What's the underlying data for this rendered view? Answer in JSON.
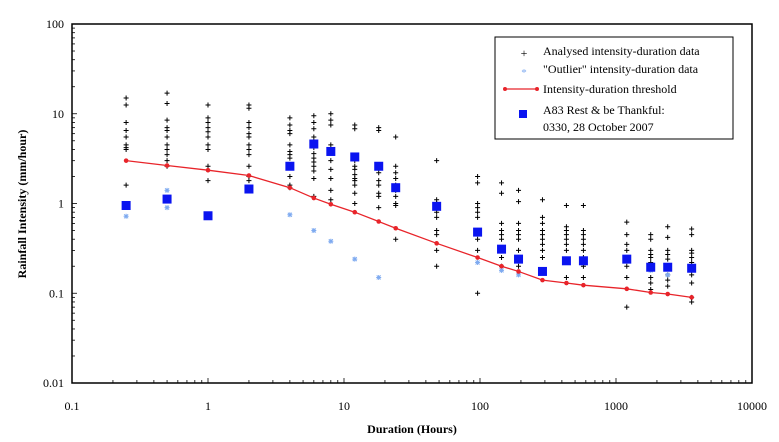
{
  "chart_data": {
    "type": "scatter",
    "title": "",
    "xlabel": "Duration (Hours)",
    "ylabel": "Rainfall Intensity (mm/hour)",
    "xscale": "log",
    "yscale": "log",
    "xlim": [
      0.1,
      10000
    ],
    "ylim": [
      0.01,
      100
    ],
    "xticks": [
      "0.1",
      "1",
      "10",
      "100",
      "1000",
      "10000"
    ],
    "yticks": [
      "0.01",
      "0.1",
      "1",
      "10",
      "100"
    ],
    "legend_position": "top-right",
    "legend": [
      "Analysed intensity-duration data",
      "\"Outlier\" intensity-duration data",
      "Intensity-duration threshold",
      "A83 Rest & be Thankful:",
      "0330, 28 October 2007"
    ],
    "series": [
      {
        "name": "Analysed intensity-duration data",
        "marker": "plus",
        "color": "#000000",
        "points": [
          [
            0.25,
            15
          ],
          [
            0.25,
            12.5
          ],
          [
            0.25,
            8
          ],
          [
            0.25,
            6.5
          ],
          [
            0.25,
            5.5
          ],
          [
            0.25,
            4.5
          ],
          [
            0.25,
            4.2
          ],
          [
            0.25,
            4
          ],
          [
            0.25,
            1.6
          ],
          [
            0.5,
            17
          ],
          [
            0.5,
            13
          ],
          [
            0.5,
            8.5
          ],
          [
            0.5,
            7
          ],
          [
            0.5,
            6.5
          ],
          [
            0.5,
            5.5
          ],
          [
            0.5,
            4.5
          ],
          [
            0.5,
            4
          ],
          [
            0.5,
            3.5
          ],
          [
            0.5,
            3
          ],
          [
            0.5,
            2.6
          ],
          [
            1,
            12.5
          ],
          [
            1,
            9
          ],
          [
            1,
            8
          ],
          [
            1,
            7
          ],
          [
            1,
            6.3
          ],
          [
            1,
            5.5
          ],
          [
            1,
            4.5
          ],
          [
            1,
            4
          ],
          [
            1,
            2.6
          ],
          [
            1,
            1.8
          ],
          [
            2,
            12.5
          ],
          [
            2,
            11.5
          ],
          [
            2,
            8
          ],
          [
            2,
            7
          ],
          [
            2,
            6
          ],
          [
            2,
            5.5
          ],
          [
            2,
            4.5
          ],
          [
            2,
            4
          ],
          [
            2,
            3.5
          ],
          [
            2,
            2.6
          ],
          [
            2,
            2
          ],
          [
            2,
            1.8
          ],
          [
            4,
            9
          ],
          [
            4,
            7.5
          ],
          [
            4,
            6.5
          ],
          [
            4,
            6
          ],
          [
            4,
            4.5
          ],
          [
            4,
            3.8
          ],
          [
            4,
            3.5
          ],
          [
            4,
            3.2
          ],
          [
            4,
            2.6
          ],
          [
            4,
            2
          ],
          [
            4,
            1.6
          ],
          [
            4,
            1.5
          ],
          [
            6,
            9.5
          ],
          [
            6,
            8
          ],
          [
            6,
            6.8
          ],
          [
            6,
            5.5
          ],
          [
            6,
            4.2
          ],
          [
            6,
            3.6
          ],
          [
            6,
            3.2
          ],
          [
            6,
            2.9
          ],
          [
            6,
            2.6
          ],
          [
            6,
            2.3
          ],
          [
            6,
            1.9
          ],
          [
            6,
            1.2
          ],
          [
            8,
            10
          ],
          [
            8,
            8.5
          ],
          [
            8,
            7.5
          ],
          [
            8,
            4.5
          ],
          [
            8,
            3
          ],
          [
            8,
            2.4
          ],
          [
            8,
            1.9
          ],
          [
            8,
            1.4
          ],
          [
            8,
            1.1
          ],
          [
            12,
            7.5
          ],
          [
            12,
            6.8
          ],
          [
            12,
            3
          ],
          [
            12,
            2.6
          ],
          [
            12,
            2.4
          ],
          [
            12,
            2.1
          ],
          [
            12,
            1.9
          ],
          [
            12,
            1.8
          ],
          [
            12,
            1.6
          ],
          [
            12,
            1.3
          ],
          [
            12,
            1
          ],
          [
            18,
            7
          ],
          [
            18,
            6.5
          ],
          [
            18,
            2.6
          ],
          [
            18,
            2.2
          ],
          [
            18,
            1.8
          ],
          [
            18,
            1.6
          ],
          [
            18,
            1.3
          ],
          [
            18,
            1.2
          ],
          [
            18,
            0.9
          ],
          [
            24,
            5.5
          ],
          [
            24,
            2.6
          ],
          [
            24,
            2.2
          ],
          [
            24,
            1.9
          ],
          [
            24,
            1.6
          ],
          [
            24,
            1.4
          ],
          [
            24,
            1.2
          ],
          [
            24,
            1
          ],
          [
            24,
            0.95
          ],
          [
            24,
            0.4
          ],
          [
            48,
            3
          ],
          [
            48,
            1.1
          ],
          [
            48,
            1
          ],
          [
            48,
            0.9
          ],
          [
            48,
            0.8
          ],
          [
            48,
            0.7
          ],
          [
            48,
            0.5
          ],
          [
            48,
            0.45
          ],
          [
            48,
            0.3
          ],
          [
            48,
            0.2
          ],
          [
            96,
            2
          ],
          [
            96,
            1.7
          ],
          [
            96,
            1
          ],
          [
            96,
            0.9
          ],
          [
            96,
            0.8
          ],
          [
            96,
            0.7
          ],
          [
            96,
            0.5
          ],
          [
            96,
            0.4
          ],
          [
            96,
            0.3
          ],
          [
            96,
            0.1
          ],
          [
            144,
            1.7
          ],
          [
            144,
            1.3
          ],
          [
            144,
            0.6
          ],
          [
            144,
            0.5
          ],
          [
            144,
            0.45
          ],
          [
            144,
            0.4
          ],
          [
            144,
            0.3
          ],
          [
            144,
            0.25
          ],
          [
            144,
            0.2
          ],
          [
            192,
            1.4
          ],
          [
            192,
            1.05
          ],
          [
            192,
            0.6
          ],
          [
            192,
            0.5
          ],
          [
            192,
            0.45
          ],
          [
            192,
            0.4
          ],
          [
            192,
            0.3
          ],
          [
            192,
            0.25
          ],
          [
            192,
            0.2
          ],
          [
            288,
            1.1
          ],
          [
            288,
            0.7
          ],
          [
            288,
            0.6
          ],
          [
            288,
            0.5
          ],
          [
            288,
            0.45
          ],
          [
            288,
            0.4
          ],
          [
            288,
            0.35
          ],
          [
            288,
            0.3
          ],
          [
            288,
            0.25
          ],
          [
            432,
            0.95
          ],
          [
            432,
            0.55
          ],
          [
            432,
            0.5
          ],
          [
            432,
            0.45
          ],
          [
            432,
            0.4
          ],
          [
            432,
            0.35
          ],
          [
            432,
            0.3
          ],
          [
            432,
            0.15
          ],
          [
            576,
            0.95
          ],
          [
            576,
            0.5
          ],
          [
            576,
            0.45
          ],
          [
            576,
            0.4
          ],
          [
            576,
            0.35
          ],
          [
            576,
            0.3
          ],
          [
            576,
            0.25
          ],
          [
            576,
            0.2
          ],
          [
            576,
            0.15
          ],
          [
            1200,
            0.62
          ],
          [
            1200,
            0.45
          ],
          [
            1200,
            0.35
          ],
          [
            1200,
            0.3
          ],
          [
            1200,
            0.25
          ],
          [
            1200,
            0.2
          ],
          [
            1200,
            0.15
          ],
          [
            1200,
            0.07
          ],
          [
            1800,
            0.45
          ],
          [
            1800,
            0.4
          ],
          [
            1800,
            0.3
          ],
          [
            1800,
            0.27
          ],
          [
            1800,
            0.25
          ],
          [
            1800,
            0.22
          ],
          [
            1800,
            0.2
          ],
          [
            1800,
            0.15
          ],
          [
            1800,
            0.13
          ],
          [
            1800,
            0.11
          ],
          [
            2400,
            0.55
          ],
          [
            2400,
            0.42
          ],
          [
            2400,
            0.3
          ],
          [
            2400,
            0.27
          ],
          [
            2400,
            0.24
          ],
          [
            2400,
            0.2
          ],
          [
            2400,
            0.16
          ],
          [
            2400,
            0.14
          ],
          [
            2400,
            0.12
          ],
          [
            3600,
            0.52
          ],
          [
            3600,
            0.45
          ],
          [
            3600,
            0.3
          ],
          [
            3600,
            0.28
          ],
          [
            3600,
            0.25
          ],
          [
            3600,
            0.22
          ],
          [
            3600,
            0.2
          ],
          [
            3600,
            0.16
          ],
          [
            3600,
            0.13
          ],
          [
            3600,
            0.09
          ],
          [
            3600,
            0.08
          ]
        ]
      },
      {
        "name": "\"Outlier\" intensity-duration data",
        "marker": "star",
        "color": "#7eaaf0",
        "points": [
          [
            0.25,
            0.72
          ],
          [
            0.5,
            1.4
          ],
          [
            0.5,
            0.9
          ],
          [
            4,
            0.75
          ],
          [
            6,
            0.5
          ],
          [
            8,
            0.38
          ],
          [
            12,
            0.24
          ],
          [
            18,
            0.15
          ],
          [
            96,
            0.22
          ],
          [
            144,
            0.18
          ],
          [
            192,
            0.16
          ],
          [
            1800,
            0.18
          ],
          [
            2400,
            0.16
          ]
        ]
      },
      {
        "name": "Intensity-duration threshold",
        "marker": "diamond-line",
        "color": "#e8242a",
        "points": [
          [
            0.25,
            3.0
          ],
          [
            0.5,
            2.65
          ],
          [
            1,
            2.35
          ],
          [
            2,
            2.05
          ],
          [
            4,
            1.5
          ],
          [
            6,
            1.15
          ],
          [
            8,
            0.98
          ],
          [
            12,
            0.8
          ],
          [
            18,
            0.63
          ],
          [
            24,
            0.53
          ],
          [
            48,
            0.36
          ],
          [
            96,
            0.25
          ],
          [
            144,
            0.2
          ],
          [
            192,
            0.175
          ],
          [
            288,
            0.14
          ],
          [
            432,
            0.13
          ],
          [
            576,
            0.123
          ],
          [
            1200,
            0.112
          ],
          [
            1800,
            0.102
          ],
          [
            2400,
            0.098
          ],
          [
            3600,
            0.09
          ]
        ]
      },
      {
        "name": "A83 Rest & be Thankful: 0330, 28 October 2007",
        "marker": "square",
        "color": "#0a14f0",
        "points": [
          [
            0.25,
            0.95
          ],
          [
            0.5,
            1.12
          ],
          [
            1,
            0.73
          ],
          [
            2,
            1.45
          ],
          [
            4,
            2.6
          ],
          [
            6,
            4.6
          ],
          [
            8,
            3.8
          ],
          [
            12,
            3.3
          ],
          [
            18,
            2.6
          ],
          [
            24,
            1.5
          ],
          [
            48,
            0.93
          ],
          [
            96,
            0.48
          ],
          [
            144,
            0.31
          ],
          [
            192,
            0.24
          ],
          [
            288,
            0.175
          ],
          [
            432,
            0.23
          ],
          [
            576,
            0.23
          ],
          [
            1200,
            0.24
          ],
          [
            1800,
            0.195
          ],
          [
            2400,
            0.195
          ],
          [
            3600,
            0.19
          ]
        ]
      }
    ]
  }
}
